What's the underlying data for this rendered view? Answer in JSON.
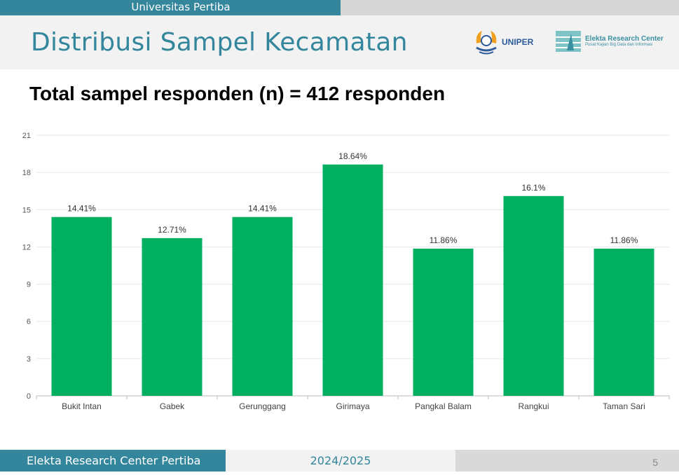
{
  "top_bar": {
    "label": "Universitas Pertiba"
  },
  "header": {
    "title": "Distribusi Sampel Kecamatan",
    "logo_uniper": "UNIPER",
    "logo_elekta_name": "Elekta Research Center",
    "logo_elekta_sub": "Pusat Kajian Big Data dan Informasi"
  },
  "subtitle": "Total sampel responden (n) = 412 responden",
  "footer": {
    "left": "Elekta Research Center Pertiba",
    "center": "2024/2025",
    "page": "5"
  },
  "colors": {
    "bar": "#00b060",
    "accent": "#33869c"
  },
  "chart_data": {
    "type": "bar",
    "title": "",
    "xlabel": "",
    "ylabel": "",
    "categories": [
      "Bukit Intan",
      "Gabek",
      "Gerunggang",
      "Girimaya",
      "Pangkal Balam",
      "Rangkui",
      "Taman Sari"
    ],
    "values": [
      14.41,
      12.71,
      14.41,
      18.64,
      11.86,
      16.1,
      11.86
    ],
    "data_labels": [
      "14.41%",
      "12.71%",
      "14.41%",
      "18.64%",
      "11.86%",
      "16.1%",
      "11.86%"
    ],
    "ylim": [
      0,
      21
    ],
    "yticks": [
      0,
      3,
      6,
      9,
      12,
      15,
      18,
      21
    ],
    "grid": true,
    "legend": "none"
  }
}
